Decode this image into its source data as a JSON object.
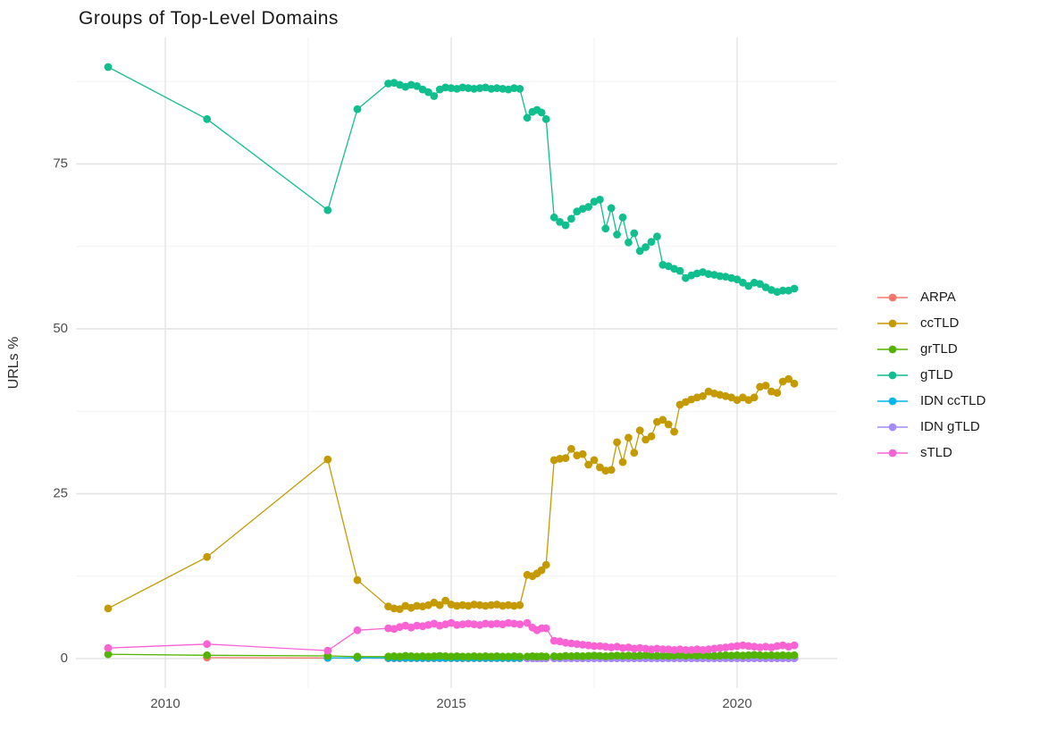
{
  "title": "Groups of Top-Level Domains",
  "styles": {
    "background": "#FFFFFF",
    "grid_major": "#E4E4E4",
    "grid_minor": "#F1F1F1",
    "tick_text_color": "#4D4D4D",
    "title_color": "#1A1A1A"
  },
  "chart_data": {
    "type": "line",
    "title": "Groups of Top-Level Domains",
    "xlabel": "",
    "ylabel": "URLs %",
    "x_tick_labels": [
      "2010",
      "2015",
      "2020"
    ],
    "x_ticks": [
      2010,
      2015,
      2020
    ],
    "x_minor_ticks": [
      2012.5,
      2017.5
    ],
    "y_tick_labels": [
      "0",
      "25",
      "50",
      "75"
    ],
    "y_ticks": [
      0,
      25,
      50,
      75
    ],
    "y_minor_ticks": [
      12.5,
      37.5,
      62.5,
      87.5
    ],
    "xlim": [
      2008.44,
      2021.75
    ],
    "ylim": [
      -4.5,
      94.3
    ],
    "grid": true,
    "legend_position": "right",
    "x": [
      2009.0,
      2010.73,
      2012.84,
      2013.36,
      2013.9,
      2014.0,
      2014.1,
      2014.2,
      2014.3,
      2014.4,
      2014.5,
      2014.6,
      2014.7,
      2014.8,
      2014.9,
      2015.0,
      2015.1,
      2015.2,
      2015.3,
      2015.4,
      2015.5,
      2015.6,
      2015.7,
      2015.8,
      2015.9,
      2016.0,
      2016.1,
      2016.2,
      2016.33,
      2016.42,
      2016.5,
      2016.58,
      2016.66,
      2016.8,
      2016.9,
      2017.0,
      2017.1,
      2017.2,
      2017.3,
      2017.4,
      2017.5,
      2017.6,
      2017.7,
      2017.8,
      2017.9,
      2018.0,
      2018.1,
      2018.2,
      2018.3,
      2018.4,
      2018.5,
      2018.6,
      2018.7,
      2018.8,
      2018.9,
      2019.0,
      2019.1,
      2019.2,
      2019.3,
      2019.4,
      2019.5,
      2019.6,
      2019.7,
      2019.8,
      2019.9,
      2020.0,
      2020.1,
      2020.2,
      2020.3,
      2020.4,
      2020.5,
      2020.6,
      2020.7,
      2020.8,
      2020.9,
      2021.0
    ],
    "series": [
      {
        "name": "ARPA",
        "color": "#F8766D",
        "x_start": 1,
        "y": [
          0.15,
          0.1,
          0.1,
          0.05,
          0.05,
          0.05,
          0.05,
          0.05,
          0.05,
          0.05,
          0.05,
          0.05,
          0.05,
          0.05,
          0.05,
          0.05,
          0.05,
          0.05,
          0.05,
          0.05,
          0.05,
          0.05,
          0.05,
          0.05,
          0.05,
          0.05,
          0.05,
          0.05,
          0.05,
          0.05,
          0.05,
          0.05,
          0.05,
          0.05,
          0.05,
          0.05,
          0.05,
          0.05,
          0.05,
          0.05,
          0.05,
          0.05,
          0.05,
          0.05,
          0.05,
          0.05,
          0.05,
          0.05,
          0.05,
          0.05,
          0.05,
          0.05,
          0.05,
          0.05,
          0.05,
          0.05,
          0.05,
          0.05,
          0.05,
          0.05,
          0.05,
          0.05,
          0.05,
          0.05,
          0.05,
          0.05,
          0.05,
          0.05,
          0.05,
          0.05,
          0.05,
          0.05,
          0.05,
          0.05,
          0.05
        ]
      },
      {
        "name": "ccTLD",
        "color": "#C49A00",
        "x_start": 0,
        "y": [
          7.6,
          15.4,
          30.2,
          11.9,
          7.9,
          7.6,
          7.5,
          8.0,
          7.7,
          8.0,
          7.9,
          8.1,
          8.5,
          8.1,
          8.8,
          8.2,
          8.0,
          8.1,
          8.0,
          8.2,
          8.1,
          8.0,
          8.1,
          8.2,
          8.0,
          8.1,
          8.0,
          8.1,
          12.7,
          12.5,
          12.9,
          13.4,
          14.2,
          30.1,
          30.3,
          30.4,
          31.8,
          30.8,
          31.0,
          29.4,
          30.1,
          29.0,
          28.5,
          28.6,
          32.8,
          29.8,
          33.5,
          31.2,
          34.6,
          33.2,
          33.7,
          35.9,
          36.2,
          35.5,
          34.4,
          38.5,
          38.9,
          39.3,
          39.6,
          39.8,
          40.5,
          40.2,
          40.0,
          39.8,
          39.6,
          39.2,
          39.6,
          39.2,
          39.6,
          41.2,
          41.4,
          40.5,
          40.3,
          42.0,
          42.4,
          41.7
        ]
      },
      {
        "name": "grTLD",
        "color": "#53B400",
        "x_start": 0,
        "y": [
          0.65,
          0.5,
          0.4,
          0.3,
          0.3,
          0.35,
          0.3,
          0.4,
          0.35,
          0.3,
          0.35,
          0.3,
          0.35,
          0.4,
          0.35,
          0.3,
          0.35,
          0.3,
          0.3,
          0.35,
          0.3,
          0.35,
          0.3,
          0.35,
          0.3,
          0.3,
          0.35,
          0.3,
          0.3,
          0.35,
          0.3,
          0.35,
          0.3,
          0.35,
          0.3,
          0.4,
          0.35,
          0.4,
          0.35,
          0.4,
          0.45,
          0.4,
          0.35,
          0.4,
          0.45,
          0.4,
          0.45,
          0.4,
          0.45,
          0.5,
          0.45,
          0.4,
          0.45,
          0.4,
          0.45,
          0.5,
          0.45,
          0.5,
          0.45,
          0.5,
          0.45,
          0.4,
          0.45,
          0.5,
          0.45,
          0.5,
          0.45,
          0.5,
          0.55,
          0.5,
          0.45,
          0.5,
          0.45,
          0.5,
          0.45,
          0.5
        ]
      },
      {
        "name": "gTLD",
        "color": "#10BE8E",
        "x_start": 0,
        "y": [
          89.7,
          81.8,
          68.0,
          83.3,
          87.2,
          87.3,
          87.0,
          86.7,
          87.0,
          86.8,
          86.3,
          85.9,
          85.3,
          86.3,
          86.6,
          86.5,
          86.4,
          86.6,
          86.5,
          86.4,
          86.5,
          86.6,
          86.4,
          86.5,
          86.4,
          86.3,
          86.5,
          86.4,
          82.0,
          82.9,
          83.2,
          82.8,
          81.8,
          66.9,
          66.2,
          65.7,
          66.7,
          67.8,
          68.2,
          68.5,
          69.3,
          69.6,
          65.2,
          68.3,
          64.3,
          66.9,
          63.1,
          64.5,
          61.8,
          62.4,
          63.2,
          64.0,
          59.7,
          59.5,
          59.1,
          58.8,
          57.7,
          58.1,
          58.4,
          58.6,
          58.3,
          58.2,
          58.0,
          57.9,
          57.7,
          57.5,
          57.0,
          56.5,
          57.0,
          56.8,
          56.3,
          55.9,
          55.6,
          55.8,
          55.8,
          56.1
        ]
      },
      {
        "name": "IDN ccTLD",
        "color": "#00B6EB",
        "x_start": 2,
        "y": [
          0.12,
          0.1,
          0.1,
          0.1,
          0.1,
          0.1,
          0.1,
          0.1,
          0.1,
          0.1,
          0.1,
          0.1,
          0.1,
          0.1,
          0.1,
          0.1,
          0.1,
          0.1,
          0.1,
          0.1,
          0.1,
          0.1,
          0.1,
          0.1,
          0.1,
          0.1,
          0.1,
          0.1,
          0.1,
          0.1,
          0.1,
          0.08,
          0.08,
          0.08,
          0.08,
          0.08,
          0.08,
          0.08,
          0.08,
          0.08,
          0.08,
          0.08,
          0.08,
          0.08,
          0.08,
          0.08,
          0.08,
          0.08,
          0.08,
          0.08,
          0.08,
          0.08,
          0.08,
          0.08,
          0.08,
          0.08,
          0.08,
          0.08,
          0.08,
          0.08,
          0.08,
          0.08,
          0.08,
          0.08,
          0.08,
          0.08,
          0.08,
          0.08,
          0.08,
          0.08,
          0.08,
          0.08,
          0.08,
          0.08
        ]
      },
      {
        "name": "IDN gTLD",
        "color": "#A58AFF",
        "x_start": 28,
        "y": [
          0.05,
          0.05,
          0.05,
          0.05,
          0.05,
          0.05,
          0.05,
          0.05,
          0.05,
          0.05,
          0.05,
          0.05,
          0.05,
          0.05,
          0.05,
          0.05,
          0.05,
          0.05,
          0.05,
          0.05,
          0.05,
          0.05,
          0.05,
          0.05,
          0.05,
          0.05,
          0.05,
          0.05,
          0.05,
          0.05,
          0.05,
          0.05,
          0.05,
          0.05,
          0.05,
          0.05,
          0.05,
          0.05,
          0.05,
          0.05,
          0.05,
          0.05,
          0.05,
          0.05,
          0.05,
          0.05,
          0.05,
          0.05
        ]
      },
      {
        "name": "sTLD",
        "color": "#F963D4",
        "x_start": 0,
        "y": [
          1.6,
          2.2,
          1.2,
          4.3,
          4.6,
          4.5,
          4.8,
          5.0,
          4.7,
          5.0,
          4.9,
          5.1,
          5.3,
          5.0,
          5.2,
          5.4,
          5.1,
          5.2,
          5.3,
          5.2,
          5.1,
          5.3,
          5.2,
          5.3,
          5.2,
          5.4,
          5.3,
          5.2,
          5.4,
          4.7,
          4.3,
          4.6,
          4.6,
          2.7,
          2.6,
          2.4,
          2.3,
          2.2,
          2.1,
          2.0,
          1.9,
          1.9,
          1.8,
          1.7,
          1.8,
          1.6,
          1.7,
          1.5,
          1.6,
          1.5,
          1.4,
          1.5,
          1.4,
          1.4,
          1.3,
          1.4,
          1.3,
          1.3,
          1.4,
          1.3,
          1.4,
          1.5,
          1.6,
          1.7,
          1.8,
          1.9,
          2.0,
          1.9,
          1.8,
          1.7,
          1.8,
          1.7,
          1.9,
          2.0,
          1.8,
          2.0
        ]
      }
    ]
  }
}
